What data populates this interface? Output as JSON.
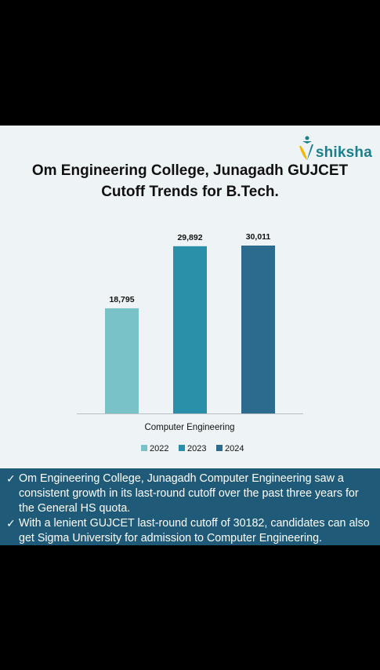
{
  "brand": {
    "name": "shiksha",
    "primary_color": "#1a7f8c",
    "accent_color": "#f2b705"
  },
  "title": "Om Engineering College, Junagadh GUJCET Cutoff Trends for B.Tech.",
  "chart_data": {
    "type": "bar",
    "categories": [
      "Computer Engineering"
    ],
    "series": [
      {
        "name": "2022",
        "values": [
          18795
        ],
        "label": "18,795",
        "color": "#79c3c8"
      },
      {
        "name": "2023",
        "values": [
          29892
        ],
        "label": "29,892",
        "color": "#2a8fa8"
      },
      {
        "name": "2024",
        "values": [
          30011
        ],
        "label": "30,011",
        "color": "#2c6a8e"
      }
    ],
    "title": "Om Engineering College, Junagadh GUJCET Cutoff Trends for B.Tech.",
    "xlabel": "",
    "ylabel": "",
    "ylim": [
      0,
      33000
    ],
    "grid": false,
    "legend": "bottom"
  },
  "notes": {
    "check_icon": "checkmark-icon",
    "items": [
      "Om Engineering College, Junagadh Computer Engineering saw a consistent growth in its last-round cutoff over the past three years for the General HS quota.",
      "With a lenient GUJCET last-round cutoff of 30182, candidates can also get Sigma University for admission to Computer Engineering."
    ]
  }
}
